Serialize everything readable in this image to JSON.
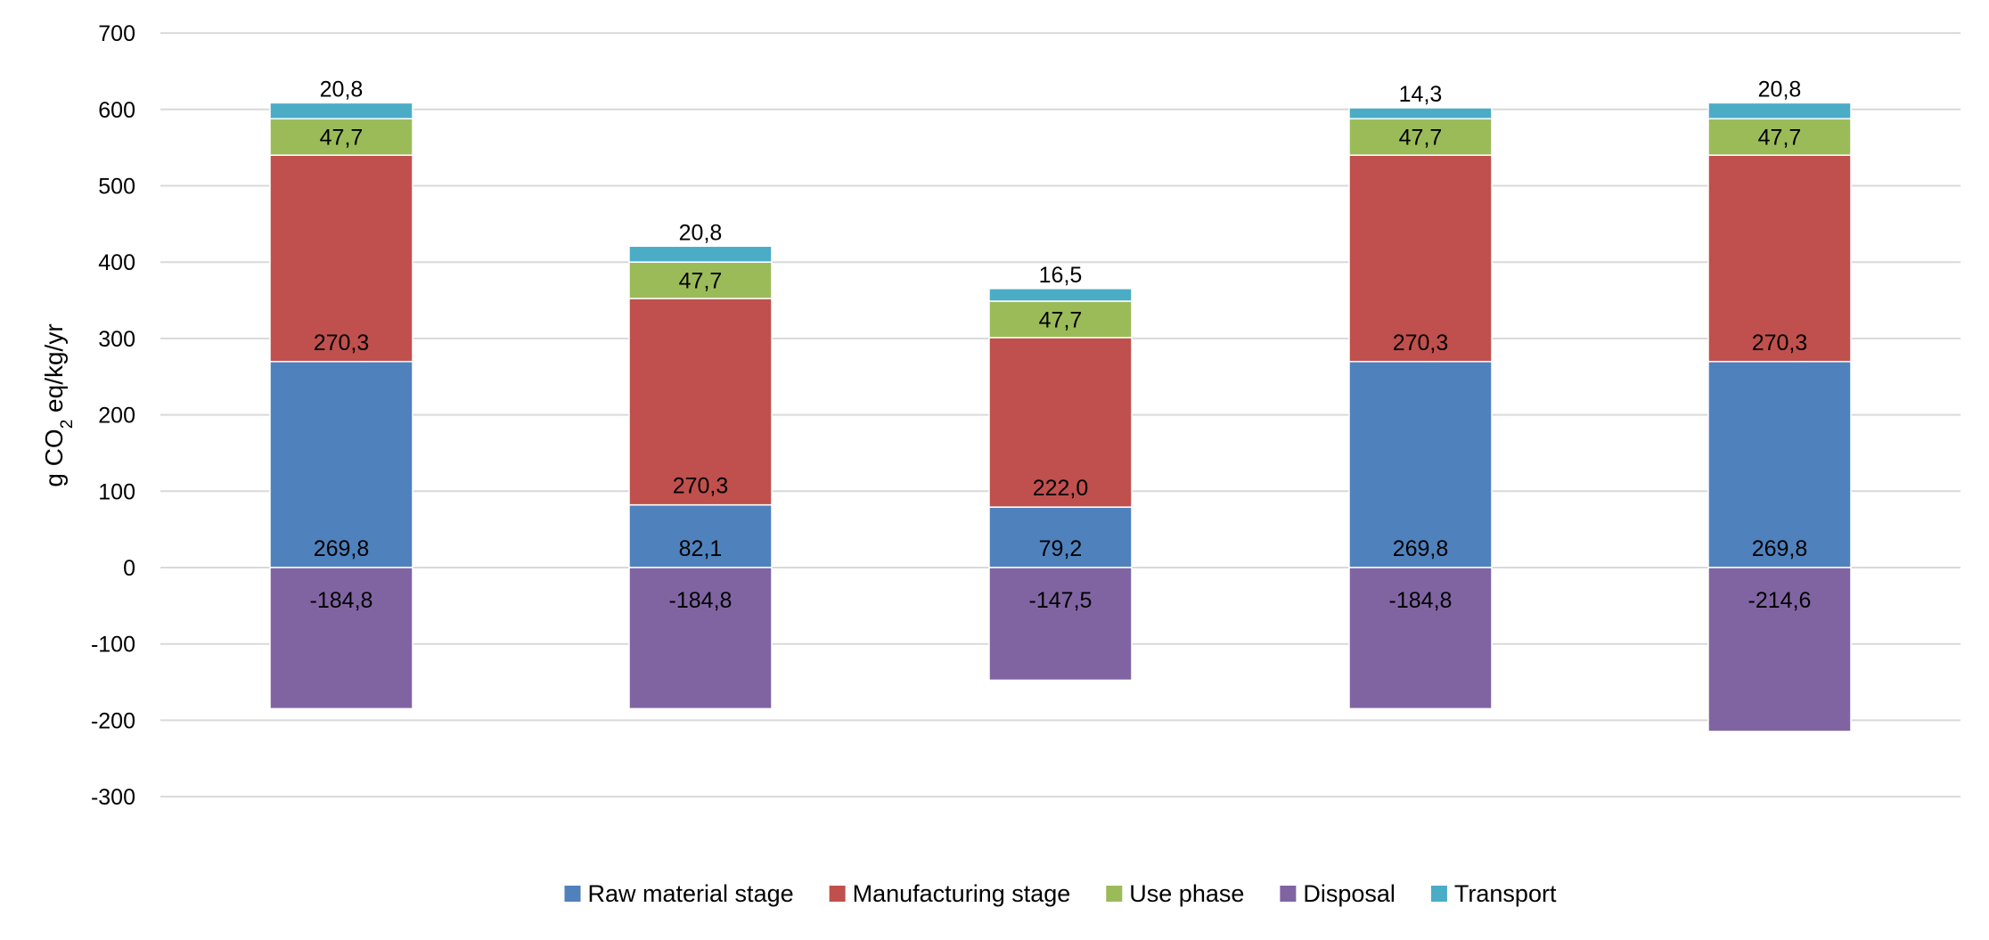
{
  "chart_data": {
    "type": "bar",
    "stacked": true,
    "title": "",
    "xlabel": "",
    "ylabel": {
      "prefix": "g CO",
      "subscript": "2",
      "suffix": " eq/kg/yr"
    },
    "ylim": [
      -300,
      700
    ],
    "yticks": [
      700,
      600,
      500,
      400,
      300,
      200,
      100,
      0,
      -100,
      -200,
      -300
    ],
    "ytick_labels": [
      "700",
      "600",
      "500",
      "400",
      "300",
      "200",
      "100",
      "0",
      "-100",
      "-200",
      "-300"
    ],
    "grid": true,
    "legend_position": "bottom",
    "categories": [
      "",
      "",
      "",
      "",
      ""
    ],
    "series": [
      {
        "name": "Raw material stage",
        "color": "#4F81BD",
        "values": [
          269.8,
          82.1,
          79.2,
          269.8,
          269.8
        ],
        "labels": [
          "269,8",
          "82,1",
          "79,2",
          "269,8",
          "269,8"
        ]
      },
      {
        "name": "Manufacturing stage",
        "color": "#C0504D",
        "values": [
          270.3,
          270.3,
          222.0,
          270.3,
          270.3
        ],
        "labels": [
          "270,3",
          "270,3",
          "222,0",
          "270,3",
          "270,3"
        ]
      },
      {
        "name": "Use phase",
        "color": "#9BBB59",
        "values": [
          47.7,
          47.7,
          47.7,
          47.7,
          47.7
        ],
        "labels": [
          "47,7",
          "47,7",
          "47,7",
          "47,7",
          "47,7"
        ]
      },
      {
        "name": "Disposal",
        "color": "#8064A2",
        "values": [
          -184.8,
          -184.8,
          -147.5,
          -184.8,
          -214.6
        ],
        "labels": [
          "-184,8",
          "-184,8",
          "-147,5",
          "-184,8",
          "-214,6"
        ]
      },
      {
        "name": "Transport",
        "color": "#4BACC6",
        "values": [
          20.8,
          20.8,
          16.5,
          14.3,
          20.8
        ],
        "labels": [
          "20,8",
          "20,8",
          "16,5",
          "14,3",
          "20,8"
        ]
      }
    ]
  }
}
